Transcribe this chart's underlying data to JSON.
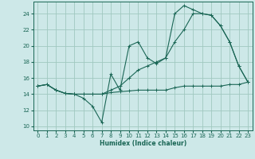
{
  "background_color": "#cde8e8",
  "grid_color": "#a0c8c0",
  "line_color": "#1a6655",
  "xlabel": "Humidex (Indice chaleur)",
  "xlim": [
    -0.5,
    23.5
  ],
  "ylim": [
    9.5,
    25.5
  ],
  "xticks": [
    0,
    1,
    2,
    3,
    4,
    5,
    6,
    7,
    8,
    9,
    10,
    11,
    12,
    13,
    14,
    15,
    16,
    17,
    18,
    19,
    20,
    21,
    22,
    23
  ],
  "yticks": [
    10,
    12,
    14,
    16,
    18,
    20,
    22,
    24
  ],
  "line1_x": [
    0,
    1,
    2,
    3,
    4,
    5,
    6,
    7,
    8,
    9,
    10,
    11,
    12,
    13,
    14,
    15,
    16,
    17,
    18,
    19,
    20,
    21,
    22,
    23
  ],
  "line1_y": [
    15.0,
    15.2,
    14.5,
    14.1,
    14.0,
    14.0,
    14.0,
    14.0,
    14.2,
    14.3,
    14.4,
    14.5,
    14.5,
    14.5,
    14.5,
    14.8,
    15.0,
    15.0,
    15.0,
    15.0,
    15.0,
    15.2,
    15.2,
    15.5
  ],
  "line2_x": [
    0,
    1,
    2,
    3,
    4,
    5,
    6,
    7,
    8,
    9,
    10,
    11,
    12,
    13,
    14,
    15,
    16,
    17,
    18,
    19,
    20,
    21,
    22,
    23
  ],
  "line2_y": [
    15.0,
    15.2,
    14.5,
    14.1,
    14.0,
    13.5,
    12.5,
    10.5,
    16.5,
    14.5,
    20.0,
    20.5,
    18.5,
    17.8,
    18.5,
    24.0,
    25.0,
    24.5,
    24.0,
    23.8,
    22.5,
    20.5,
    17.5,
    15.5
  ],
  "line3_x": [
    0,
    1,
    2,
    3,
    4,
    5,
    6,
    7,
    8,
    9,
    10,
    11,
    12,
    13,
    14,
    15,
    16,
    17,
    18,
    19,
    20,
    21,
    22,
    23
  ],
  "line3_y": [
    15.0,
    15.2,
    14.5,
    14.1,
    14.0,
    14.0,
    14.0,
    14.0,
    14.5,
    15.0,
    16.0,
    17.0,
    17.5,
    18.0,
    18.5,
    20.5,
    22.0,
    24.0,
    24.0,
    23.8,
    22.5,
    20.5,
    17.5,
    15.5
  ]
}
